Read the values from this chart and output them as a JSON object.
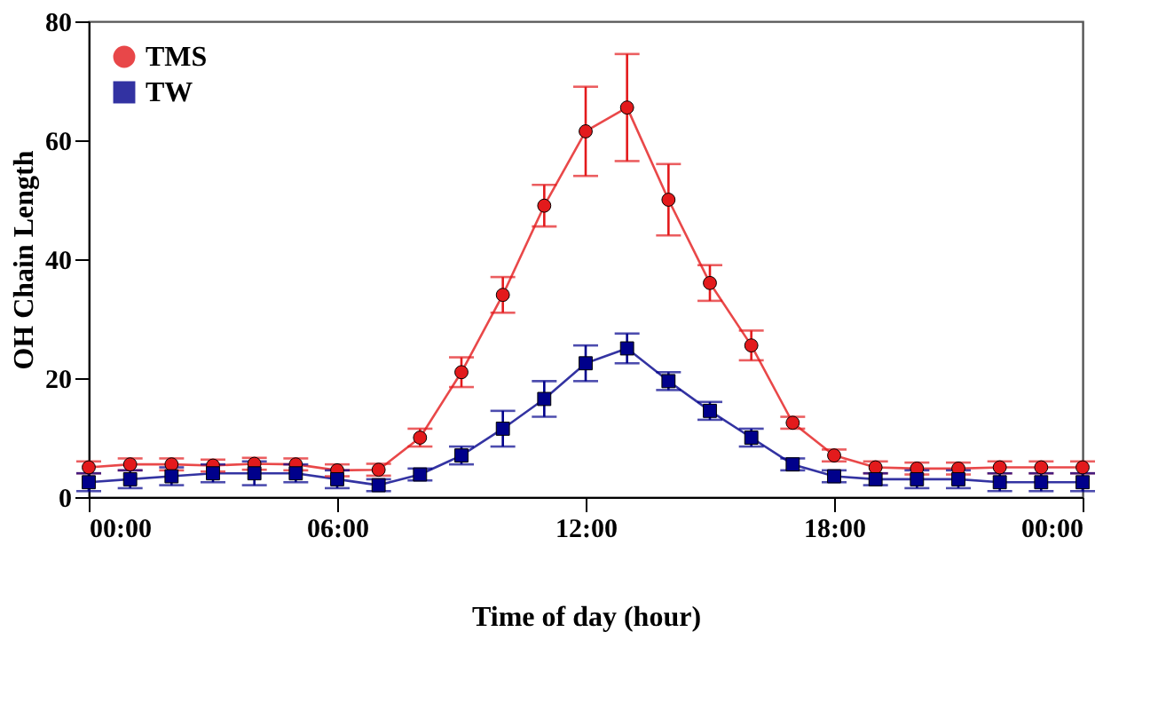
{
  "chart_data": {
    "type": "line",
    "xlabel": "Time of day (hour)",
    "ylabel": "OH Chain Length",
    "x": [
      0,
      1,
      2,
      3,
      4,
      5,
      6,
      7,
      8,
      9,
      10,
      11,
      12,
      13,
      14,
      15,
      16,
      17,
      18,
      19,
      20,
      21,
      22,
      23,
      24
    ],
    "series": [
      {
        "name": "TMS",
        "color": "#e31a1c",
        "marker": "circle",
        "values": [
          5,
          5.5,
          5.5,
          5.3,
          5.6,
          5.5,
          4.5,
          4.6,
          10,
          21,
          34,
          49,
          61.5,
          65.5,
          50,
          36,
          25.5,
          12.5,
          7,
          5,
          4.8,
          4.8,
          5,
          5,
          5
        ],
        "errors": [
          1,
          1,
          1,
          1,
          1,
          1,
          1,
          1,
          1.5,
          2.5,
          3,
          3.5,
          7.5,
          9,
          6,
          3,
          2.5,
          1,
          1,
          1,
          1,
          1,
          1,
          1,
          1
        ]
      },
      {
        "name": "TW",
        "color": "#00008b",
        "marker": "square",
        "values": [
          2.5,
          3,
          3.5,
          4,
          4,
          4,
          3,
          2,
          3.8,
          7,
          11.5,
          16.5,
          22.5,
          25,
          19.5,
          14.5,
          10,
          5.5,
          3.5,
          3,
          3,
          3,
          2.5,
          2.5,
          2.5
        ],
        "errors": [
          1.5,
          1.5,
          1.5,
          1.5,
          2,
          1.5,
          1.5,
          1,
          1,
          1.5,
          3,
          3,
          3,
          2.5,
          1.5,
          1.5,
          1.5,
          1,
          1,
          1,
          1.5,
          1.5,
          1.5,
          1.5,
          1.5
        ]
      }
    ],
    "xlim": [
      0,
      24
    ],
    "xticks": [
      {
        "value": 0,
        "label": "00:00"
      },
      {
        "value": 6,
        "label": "06:00"
      },
      {
        "value": 12,
        "label": "12:00"
      },
      {
        "value": 18,
        "label": "18:00"
      },
      {
        "value": 24,
        "label": "00:00"
      }
    ],
    "ylim": [
      0,
      80
    ],
    "yticks": [
      0,
      20,
      40,
      60,
      80
    ],
    "grid": false,
    "legend": "top left",
    "line_style": "solid"
  }
}
